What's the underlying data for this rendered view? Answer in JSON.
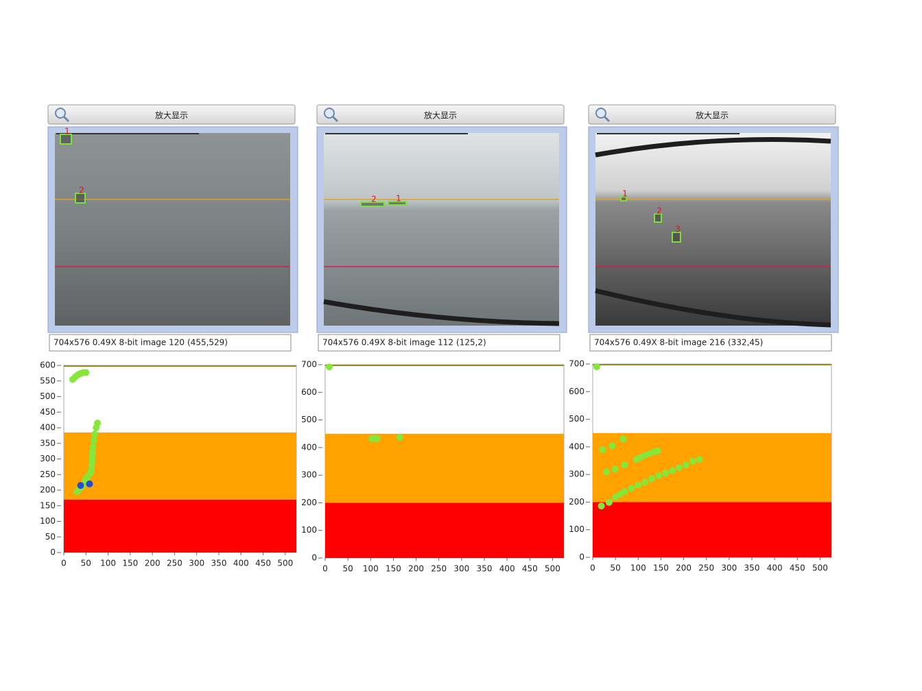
{
  "panels": [
    {
      "button": "放大显示",
      "status": "704x576 0.49X 8-bit image 120",
      "coords": "(455,529)",
      "boxes": [
        "1",
        "2"
      ]
    },
    {
      "button": "放大显示",
      "status": "704x576 0.49X 8-bit image 112",
      "coords": "(125,2)",
      "boxes": [
        "2",
        "1"
      ]
    },
    {
      "button": "放大显示",
      "status": "704x576 0.49X 8-bit image 216",
      "coords": "(332,45)",
      "boxes": [
        "1",
        "2",
        "3"
      ]
    }
  ],
  "chart_data": [
    {
      "type": "scatter",
      "xlim": [
        0,
        525
      ],
      "ylim": [
        0,
        600
      ],
      "xticks": [
        0,
        50,
        100,
        150,
        200,
        250,
        300,
        350,
        400,
        450,
        500
      ],
      "yticks": [
        0,
        50,
        100,
        150,
        200,
        250,
        300,
        350,
        400,
        450,
        500,
        550,
        600
      ],
      "bands": [
        {
          "from": 0,
          "to": 170,
          "color": "#ff0000"
        },
        {
          "from": 170,
          "to": 385,
          "color": "#ffa200"
        }
      ],
      "series": [
        {
          "color": "#86e63a",
          "x": [
            20,
            26,
            32,
            38,
            44,
            50,
            30,
            36,
            42,
            48,
            52,
            56,
            60,
            62,
            63,
            64,
            64,
            65,
            66,
            68,
            70,
            73,
            76
          ],
          "values": [
            555,
            563,
            570,
            574,
            577,
            577,
            195,
            205,
            215,
            230,
            240,
            248,
            255,
            265,
            280,
            295,
            310,
            325,
            340,
            360,
            380,
            400,
            415
          ]
        },
        {
          "color": "#1f4fd0",
          "x": [
            38,
            58
          ],
          "values": [
            215,
            220
          ]
        }
      ]
    },
    {
      "type": "scatter",
      "xlim": [
        0,
        525
      ],
      "ylim": [
        0,
        700
      ],
      "xticks": [
        0,
        50,
        100,
        150,
        200,
        250,
        300,
        350,
        400,
        450,
        500
      ],
      "yticks": [
        0,
        100,
        200,
        300,
        400,
        500,
        600,
        700
      ],
      "bands": [
        {
          "from": 0,
          "to": 200,
          "color": "#ff0000"
        },
        {
          "from": 200,
          "to": 450,
          "color": "#ffa200"
        }
      ],
      "series": [
        {
          "color": "#86e63a",
          "x": [
            9,
            102,
            108,
            114,
            164
          ],
          "values": [
            692,
            432,
            434,
            432,
            437
          ]
        }
      ]
    },
    {
      "type": "scatter",
      "xlim": [
        0,
        525
      ],
      "ylim": [
        0,
        700
      ],
      "xticks": [
        0,
        50,
        100,
        150,
        200,
        250,
        300,
        350,
        400,
        450,
        500
      ],
      "yticks": [
        0,
        100,
        200,
        300,
        400,
        500,
        600,
        700
      ],
      "bands": [
        {
          "from": 0,
          "to": 200,
          "color": "#ff0000"
        },
        {
          "from": 200,
          "to": 450,
          "color": "#ffa200"
        }
      ],
      "series": [
        {
          "color": "#86e63a",
          "x": [
            9,
            22,
            43,
            67,
            30,
            49,
            70,
            19,
            36,
            50,
            60,
            70,
            85,
            100,
            115,
            130,
            145,
            160,
            175,
            190,
            205,
            220,
            235,
            96,
            105,
            115,
            125,
            135,
            143
          ],
          "values": [
            690,
            390,
            404,
            429,
            310,
            320,
            335,
            186,
            199,
            218,
            228,
            238,
            250,
            262,
            272,
            285,
            296,
            305,
            314,
            325,
            335,
            348,
            355,
            355,
            362,
            370,
            376,
            382,
            385
          ]
        }
      ]
    }
  ]
}
